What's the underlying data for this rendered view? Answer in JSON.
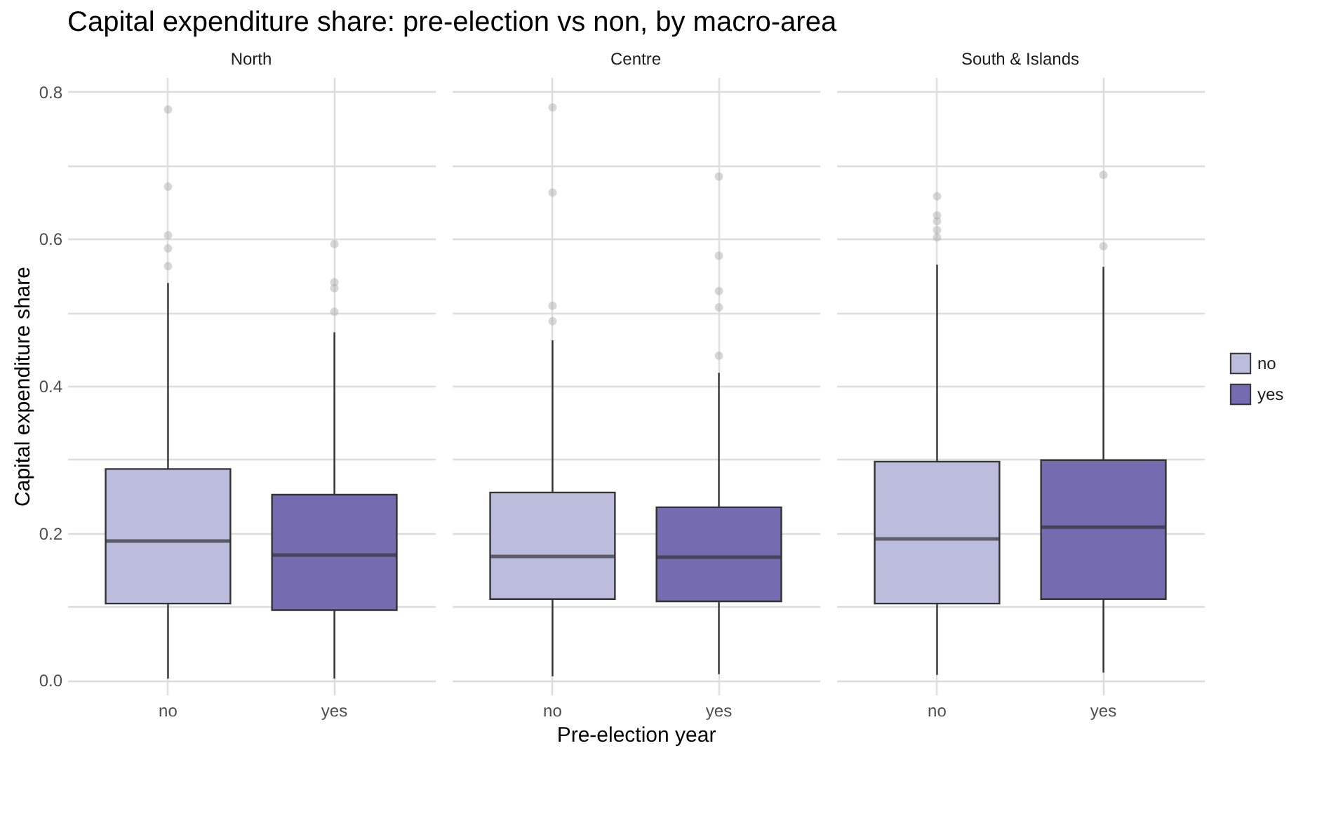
{
  "chart_data": [
    {
      "type": "box",
      "title": "Capital expenditure share: pre-election vs non, by macro-area",
      "subtitle": "North",
      "ylabel": "Capital expenditure share",
      "categories": [
        "no",
        "yes"
      ],
      "ylim": [
        -0.02,
        0.82
      ],
      "yticks": [
        {
          "value": 0,
          "label": "0.0"
        },
        {
          "value": 0.1,
          "label": null
        },
        {
          "value": 0.2,
          "label": "0.2"
        },
        {
          "value": 0.3,
          "label": null
        },
        {
          "value": 0.4,
          "label": "0.4"
        },
        {
          "value": 0.5,
          "label": null
        },
        {
          "value": 0.6,
          "label": "0.6"
        },
        {
          "value": 0.7,
          "label": null
        },
        {
          "value": 0.8,
          "label": "0.8"
        }
      ],
      "grid": true,
      "marker": "circle",
      "series": [
        {
          "color": "#bcbddc",
          "boxes": [
            {
              "low": 0.002,
              "q1": 0.104,
              "median": 0.189,
              "q3": 0.287,
              "high": 0.54,
              "outliers": [
                0.776,
                0.671,
                0.605,
                0.587,
                0.563
              ]
            },
            null
          ]
        },
        {
          "color": "#756bb1",
          "boxes": [
            null,
            {
              "low": 0.002,
              "q1": 0.095,
              "median": 0.17,
              "q3": 0.252,
              "high": 0.473,
              "outliers": [
                0.593,
                0.541,
                0.533,
                0.501
              ]
            }
          ]
        }
      ]
    },
    {
      "type": "box",
      "subtitle": "Centre",
      "xlabel": "Pre-election year",
      "categories": [
        "no",
        "yes"
      ],
      "ylim": [
        -0.02,
        0.82
      ],
      "yticks": [
        0,
        0.1,
        0.2,
        0.3,
        0.4,
        0.5,
        0.6,
        0.7,
        0.8
      ],
      "grid": true,
      "marker": "circle",
      "tick_labels": "x",
      "series": [
        {
          "color": "#bcbddc",
          "boxes": [
            {
              "low": 0.005,
              "q1": 0.11,
              "median": 0.168,
              "q3": 0.255,
              "high": 0.462,
              "outliers": [
                0.779,
                0.663,
                0.509,
                0.488
              ]
            },
            null
          ]
        },
        {
          "color": "#756bb1",
          "boxes": [
            null,
            {
              "low": 0.008,
              "q1": 0.107,
              "median": 0.167,
              "q3": 0.235,
              "high": 0.418,
              "outliers": [
                0.685,
                0.577,
                0.529,
                0.507,
                0.441
              ]
            }
          ]
        }
      ]
    },
    {
      "type": "box",
      "subtitle": "South & Islands",
      "categories": [
        "no",
        "yes"
      ],
      "ylim": [
        -0.02,
        0.82
      ],
      "yticks": [
        0,
        0.1,
        0.2,
        0.3,
        0.4,
        0.5,
        0.6,
        0.7,
        0.8
      ],
      "grid": true,
      "marker": "circle",
      "tick_labels": "x",
      "legend": "right",
      "series": [
        {
          "name": "no",
          "color": "#bcbddc",
          "boxes": [
            {
              "low": 0.007,
              "q1": 0.104,
              "median": 0.192,
              "q3": 0.297,
              "high": 0.565,
              "outliers": [
                0.658,
                0.632,
                0.624,
                0.612,
                0.602
              ]
            },
            null
          ]
        },
        {
          "name": "yes",
          "color": "#756bb1",
          "boxes": [
            null,
            {
              "low": 0.01,
              "q1": 0.11,
              "median": 0.208,
              "q3": 0.299,
              "high": 0.562,
              "outliers": [
                0.687,
                0.59
              ]
            }
          ]
        }
      ]
    }
  ]
}
